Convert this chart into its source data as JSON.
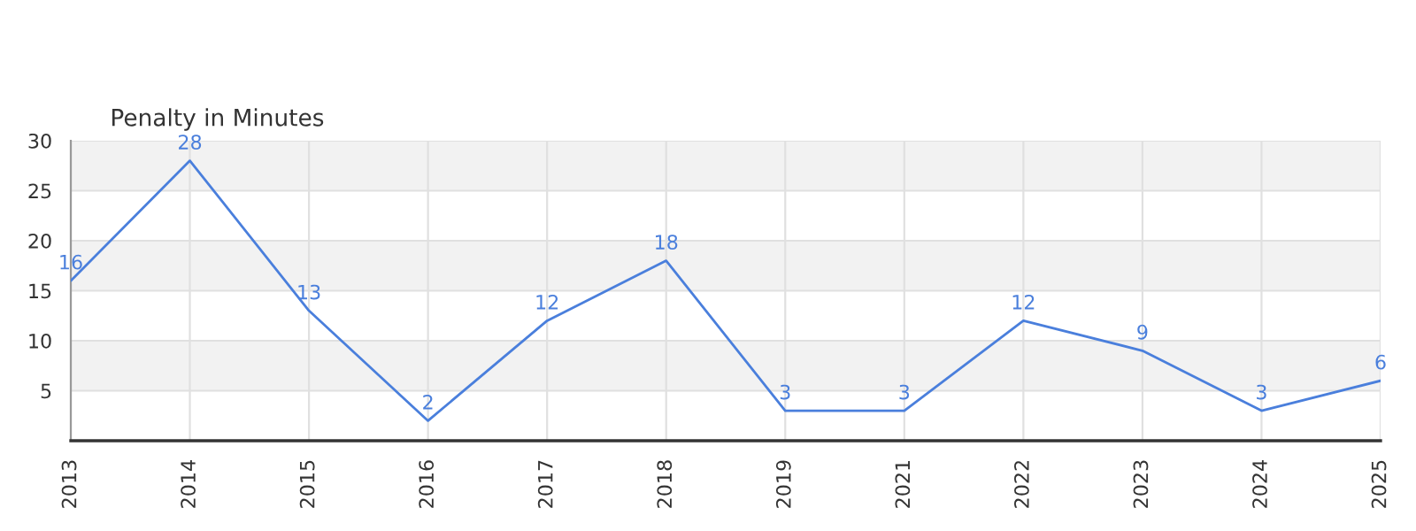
{
  "chart_data": {
    "type": "line",
    "title": "Penalty in Minutes",
    "categories": [
      "2013",
      "2014",
      "2015",
      "2016",
      "2017",
      "2018",
      "2019",
      "2021",
      "2022",
      "2023",
      "2024",
      "2025"
    ],
    "series": [
      {
        "color": "#4a7fdc",
        "values": [
          16,
          28,
          13,
          2,
          12,
          18,
          3,
          3,
          12,
          9,
          3,
          6
        ]
      }
    ],
    "ylim": [
      0,
      30
    ],
    "yticks": [
      5,
      10,
      15,
      20,
      25,
      30
    ],
    "grid": true,
    "data_labels": true,
    "marker": "none",
    "line_style": "solid",
    "legend": false
  }
}
